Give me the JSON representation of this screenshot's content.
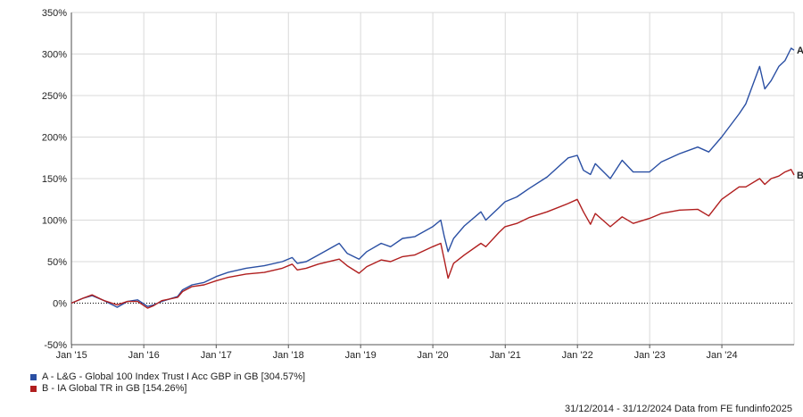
{
  "chart_data": {
    "type": "line",
    "x_tick_labels": [
      "Jan '15",
      "Jan '16",
      "Jan '17",
      "Jan '18",
      "Jan '19",
      "Jan '20",
      "Jan '21",
      "Jan '22",
      "Jan '23",
      "Jan '24"
    ],
    "y_tick_labels": [
      "350%",
      "300%",
      "250%",
      "200%",
      "150%",
      "100%",
      "50%",
      "0%",
      "-50%"
    ],
    "ylim": [
      -50,
      350
    ],
    "xlim": [
      "2014-12-31",
      "2024-12-31"
    ],
    "grid": true,
    "series": [
      {
        "name": "A - L&G - Global 100 Index Trust I Acc GBP in GB [304.57%]",
        "end_marker": "A",
        "color": "#2a4fa3",
        "points": [
          [
            "2014-12-31",
            0
          ],
          [
            "2015-03-01",
            6
          ],
          [
            "2015-04-15",
            9
          ],
          [
            "2015-06-15",
            3
          ],
          [
            "2015-08-20",
            -5
          ],
          [
            "2015-10-10",
            2
          ],
          [
            "2015-12-01",
            4
          ],
          [
            "2016-01-20",
            -4
          ],
          [
            "2016-02-20",
            -2
          ],
          [
            "2016-04-01",
            2
          ],
          [
            "2016-06-20",
            8
          ],
          [
            "2016-07-15",
            16
          ],
          [
            "2016-09-01",
            22
          ],
          [
            "2016-11-01",
            25
          ],
          [
            "2017-01-01",
            32
          ],
          [
            "2017-03-01",
            37
          ],
          [
            "2017-06-01",
            42
          ],
          [
            "2017-09-01",
            45
          ],
          [
            "2017-12-01",
            50
          ],
          [
            "2018-01-20",
            55
          ],
          [
            "2018-02-15",
            48
          ],
          [
            "2018-04-01",
            50
          ],
          [
            "2018-06-01",
            58
          ],
          [
            "2018-09-15",
            72
          ],
          [
            "2018-10-25",
            60
          ],
          [
            "2018-12-24",
            53
          ],
          [
            "2019-02-01",
            62
          ],
          [
            "2019-04-15",
            72
          ],
          [
            "2019-06-01",
            68
          ],
          [
            "2019-08-01",
            78
          ],
          [
            "2019-10-01",
            80
          ],
          [
            "2019-12-31",
            92
          ],
          [
            "2020-02-10",
            100
          ],
          [
            "2020-02-28",
            80
          ],
          [
            "2020-03-18",
            62
          ],
          [
            "2020-04-15",
            78
          ],
          [
            "2020-06-08",
            93
          ],
          [
            "2020-08-31",
            110
          ],
          [
            "2020-09-25",
            100
          ],
          [
            "2020-11-30",
            115
          ],
          [
            "2020-12-31",
            122
          ],
          [
            "2021-03-01",
            128
          ],
          [
            "2021-05-01",
            138
          ],
          [
            "2021-08-01",
            152
          ],
          [
            "2021-11-15",
            175
          ],
          [
            "2021-12-31",
            178
          ],
          [
            "2022-01-31",
            160
          ],
          [
            "2022-03-08",
            155
          ],
          [
            "2022-04-01",
            168
          ],
          [
            "2022-06-16",
            150
          ],
          [
            "2022-08-15",
            172
          ],
          [
            "2022-10-10",
            158
          ],
          [
            "2022-12-31",
            158
          ],
          [
            "2023-03-01",
            170
          ],
          [
            "2023-06-01",
            180
          ],
          [
            "2023-09-01",
            188
          ],
          [
            "2023-10-27",
            182
          ],
          [
            "2023-12-31",
            200
          ],
          [
            "2024-03-28",
            228
          ],
          [
            "2024-05-01",
            240
          ],
          [
            "2024-07-10",
            285
          ],
          [
            "2024-08-05",
            258
          ],
          [
            "2024-09-06",
            268
          ],
          [
            "2024-10-15",
            285
          ],
          [
            "2024-11-15",
            292
          ],
          [
            "2024-12-16",
            307
          ],
          [
            "2024-12-31",
            304.57
          ]
        ]
      },
      {
        "name": "B - IA Global TR in GB [154.26%]",
        "end_marker": "B",
        "color": "#b01e1e",
        "points": [
          [
            "2014-12-31",
            0
          ],
          [
            "2015-03-01",
            6
          ],
          [
            "2015-04-15",
            10
          ],
          [
            "2015-06-15",
            3
          ],
          [
            "2015-08-20",
            -2
          ],
          [
            "2015-10-10",
            2
          ],
          [
            "2015-12-01",
            2
          ],
          [
            "2016-01-20",
            -6
          ],
          [
            "2016-02-20",
            -3
          ],
          [
            "2016-04-01",
            3
          ],
          [
            "2016-06-20",
            7
          ],
          [
            "2016-07-15",
            14
          ],
          [
            "2016-09-01",
            20
          ],
          [
            "2016-11-01",
            22
          ],
          [
            "2017-01-01",
            27
          ],
          [
            "2017-03-01",
            31
          ],
          [
            "2017-06-01",
            35
          ],
          [
            "2017-09-01",
            37
          ],
          [
            "2017-12-01",
            42
          ],
          [
            "2018-01-20",
            47
          ],
          [
            "2018-02-15",
            40
          ],
          [
            "2018-04-01",
            42
          ],
          [
            "2018-06-01",
            47
          ],
          [
            "2018-09-15",
            53
          ],
          [
            "2018-10-25",
            45
          ],
          [
            "2018-12-24",
            36
          ],
          [
            "2019-02-01",
            44
          ],
          [
            "2019-04-15",
            52
          ],
          [
            "2019-06-01",
            50
          ],
          [
            "2019-08-01",
            56
          ],
          [
            "2019-10-01",
            58
          ],
          [
            "2019-12-31",
            68
          ],
          [
            "2020-02-10",
            72
          ],
          [
            "2020-02-28",
            52
          ],
          [
            "2020-03-18",
            30
          ],
          [
            "2020-04-15",
            48
          ],
          [
            "2020-06-08",
            58
          ],
          [
            "2020-08-31",
            72
          ],
          [
            "2020-09-25",
            68
          ],
          [
            "2020-11-30",
            85
          ],
          [
            "2020-12-31",
            92
          ],
          [
            "2021-03-01",
            96
          ],
          [
            "2021-05-01",
            103
          ],
          [
            "2021-08-01",
            110
          ],
          [
            "2021-11-15",
            120
          ],
          [
            "2021-12-31",
            125
          ],
          [
            "2022-01-31",
            110
          ],
          [
            "2022-03-08",
            95
          ],
          [
            "2022-04-01",
            108
          ],
          [
            "2022-06-16",
            92
          ],
          [
            "2022-08-15",
            104
          ],
          [
            "2022-10-10",
            96
          ],
          [
            "2022-12-31",
            102
          ],
          [
            "2023-03-01",
            108
          ],
          [
            "2023-06-01",
            112
          ],
          [
            "2023-09-01",
            113
          ],
          [
            "2023-10-27",
            105
          ],
          [
            "2023-12-31",
            125
          ],
          [
            "2024-03-28",
            140
          ],
          [
            "2024-05-01",
            140
          ],
          [
            "2024-07-10",
            150
          ],
          [
            "2024-08-05",
            143
          ],
          [
            "2024-09-06",
            150
          ],
          [
            "2024-10-15",
            153
          ],
          [
            "2024-11-15",
            158
          ],
          [
            "2024-12-16",
            161
          ],
          [
            "2024-12-31",
            154.26
          ]
        ]
      }
    ]
  },
  "footer": {
    "text": "31/12/2014 - 31/12/2024 Data from FE fundinfo2025"
  }
}
